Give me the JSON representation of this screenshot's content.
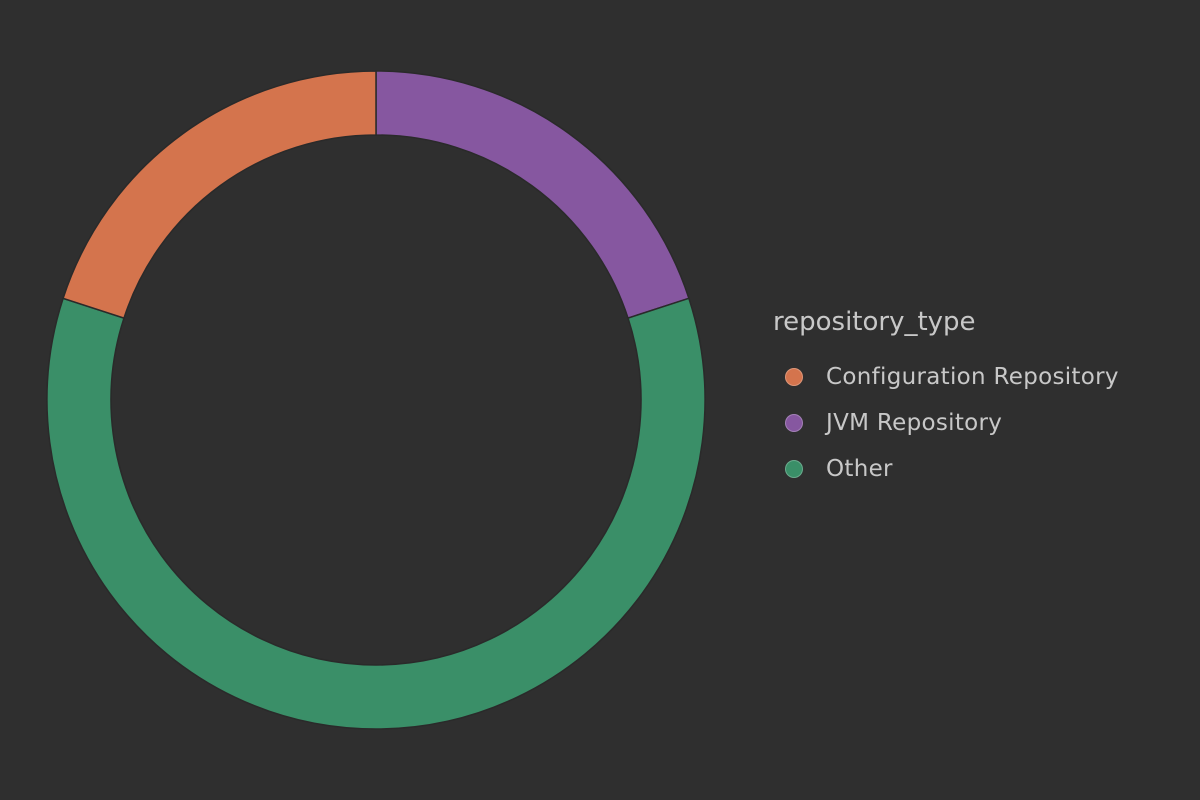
{
  "chart_data": {
    "type": "pie",
    "donut": true,
    "legend": {
      "title": "repository_type",
      "placement": "right"
    },
    "slices": [
      {
        "label": "Configuration Repository",
        "value": 20,
        "color": "#d4744d"
      },
      {
        "label": "JVM Repository",
        "value": 20,
        "color": "#8657a0"
      },
      {
        "label": "Other",
        "value": 60,
        "color": "#3a8f68"
      }
    ]
  },
  "colors": {
    "background": "#2f2f2f",
    "text": "#c8c8c8"
  }
}
